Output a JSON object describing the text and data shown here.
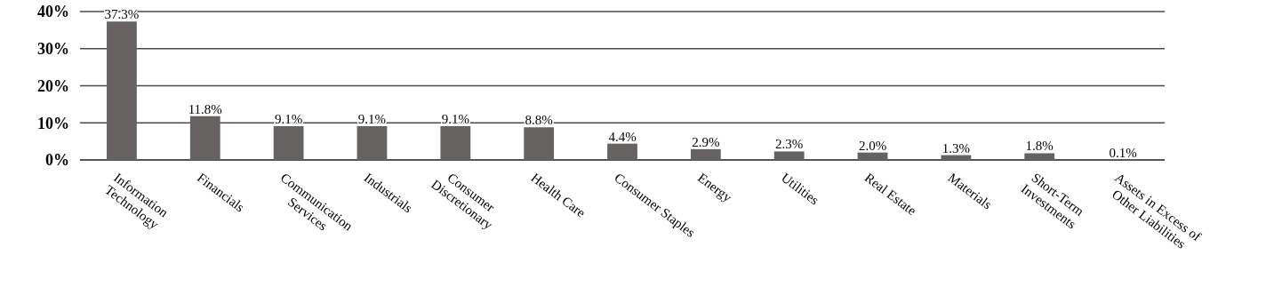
{
  "chart_data": {
    "type": "bar",
    "categories": [
      "Information Technology",
      "Financials",
      "Communication Services",
      "Industrials",
      "Consumer Discretionary",
      "Health Care",
      "Consumer Staples",
      "Energy",
      "Utilities",
      "Real Estate",
      "Materials",
      "Short-Term Investments",
      "Assets in Excess of Other Liabilities"
    ],
    "values": [
      37.3,
      11.8,
      9.1,
      9.1,
      9.1,
      8.8,
      4.4,
      2.9,
      2.3,
      2.0,
      1.3,
      1.8,
      0.1
    ],
    "value_labels": [
      "37.3%",
      "11.8%",
      "9.1%",
      "9.1%",
      "9.1%",
      "8.8%",
      "4.4%",
      "2.9%",
      "2.3%",
      "2.0%",
      "1.3%",
      "1.8%",
      "0.1%"
    ],
    "color": "#676262",
    "ylim": [
      0,
      40
    ],
    "yticks": [
      {
        "value": 0,
        "label": "0%"
      },
      {
        "value": 10,
        "label": "10%"
      },
      {
        "value": 20,
        "label": "20%"
      },
      {
        "value": 30,
        "label": "30%"
      },
      {
        "value": 40,
        "label": "40%"
      }
    ],
    "grid": "y"
  }
}
